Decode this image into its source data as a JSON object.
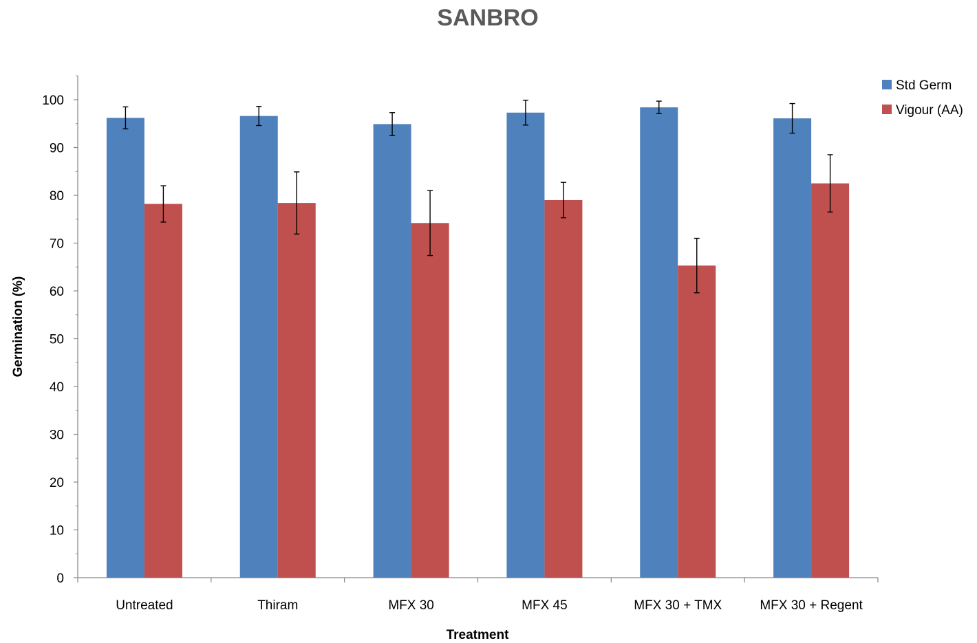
{
  "chart_data": {
    "type": "bar",
    "title": "SANBRO",
    "xlabel": "Treatment",
    "ylabel": "Germination (%)",
    "ylim": [
      0,
      100
    ],
    "y_ticks": [
      0,
      10,
      20,
      30,
      40,
      50,
      60,
      70,
      80,
      90,
      100
    ],
    "categories": [
      "Untreated",
      "Thiram",
      "MFX 30",
      "MFX 45",
      "MFX 30 + TMX",
      "MFX 30 + Regent"
    ],
    "series": [
      {
        "name": "Std Germ",
        "color": "#4f81bd",
        "values": [
          96.2,
          96.6,
          94.9,
          97.3,
          98.4,
          96.1
        ],
        "error": [
          2.3,
          2.0,
          2.4,
          2.6,
          1.3,
          3.1
        ]
      },
      {
        "name": "Vigour (AA)",
        "color": "#c0504d",
        "values": [
          78.2,
          78.4,
          74.2,
          79.0,
          65.3,
          82.5
        ],
        "error": [
          3.8,
          6.5,
          6.8,
          3.7,
          5.7,
          6.0
        ]
      }
    ],
    "grid": false,
    "legend_position": "top-right"
  }
}
